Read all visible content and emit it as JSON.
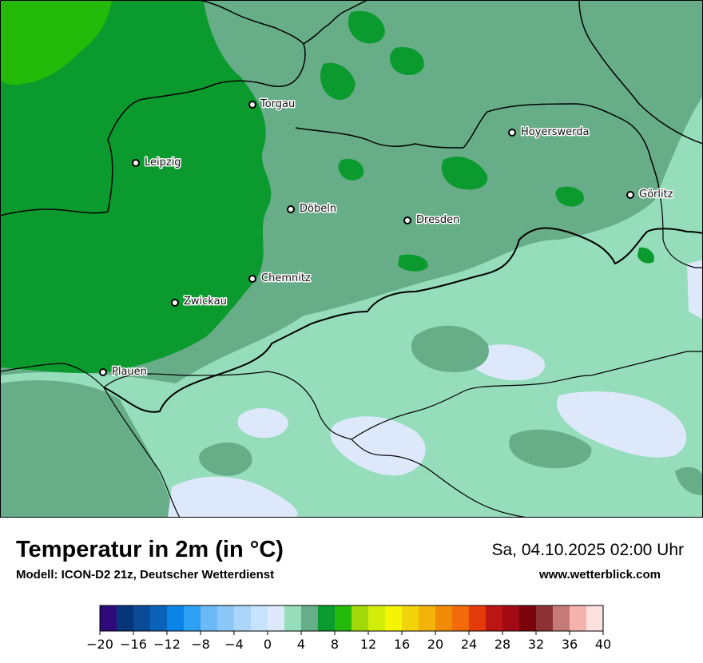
{
  "title": "Temperatur in 2m (in °C)",
  "subtitle": "Modell: ICON-D2 21z, Deutscher Wetterdienst",
  "datetime": "Sa, 04.10.2025 02:00 Uhr",
  "website": "www.wetterblick.com",
  "cities": [
    {
      "name": "Torgau"
    },
    {
      "name": "Leipzig"
    },
    {
      "name": "Hoyerswerda"
    },
    {
      "name": "Görlitz"
    },
    {
      "name": "Döbeln"
    },
    {
      "name": "Dresden"
    },
    {
      "name": "Chemnitz"
    },
    {
      "name": "Zwickau"
    },
    {
      "name": "Plauen"
    }
  ],
  "legend": {
    "tick_labels": [
      "−20",
      "−16",
      "−12",
      "−8",
      "−4",
      "0",
      "4",
      "8",
      "12",
      "16",
      "20",
      "24",
      "28",
      "32",
      "36",
      "40"
    ],
    "colors": [
      "#2e0a7a",
      "#06357a",
      "#0a4b96",
      "#0a63b8",
      "#0b84e8",
      "#2ea0f5",
      "#6bb9f7",
      "#8cc7f8",
      "#abd6fa",
      "#c7e3fb",
      "#dde9fa",
      "#95ddbb",
      "#67ad88",
      "#0a9a2e",
      "#24ba0a",
      "#a2d80a",
      "#d2ee08",
      "#f4f404",
      "#f2d40a",
      "#f3b40a",
      "#f28c08",
      "#f26a0a",
      "#e53a0a",
      "#bc1614",
      "#a20b13",
      "#7a020a",
      "#8e3238",
      "#c57a78",
      "#f6b3ae",
      "#fde1e1"
    ]
  }
}
